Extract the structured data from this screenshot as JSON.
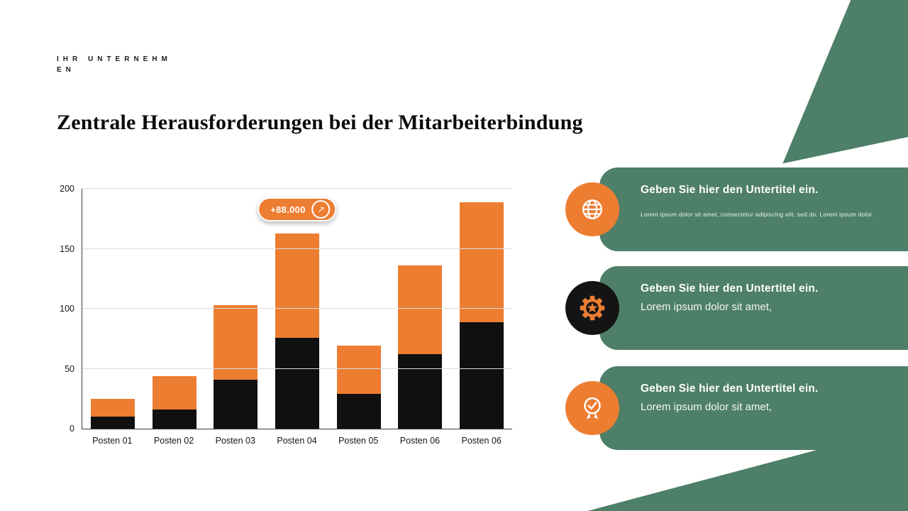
{
  "header": {
    "company_line1": "IHR UNTERNEHM",
    "company_line2": "EN",
    "title": "Zentrale Herausforderungen bei der Mitarbeiterbindung"
  },
  "chart_data": {
    "type": "bar",
    "stacked": true,
    "title": "",
    "xlabel": "",
    "ylabel": "",
    "categories": [
      "Posten 01",
      "Posten 02",
      "Posten 03",
      "Posten 04",
      "Posten 05",
      "Posten 06",
      "Posten 06"
    ],
    "series": [
      {
        "name": "unteres-segment-schwarz",
        "color": "#101010",
        "values": [
          10,
          16,
          41,
          76,
          29,
          62,
          89
        ]
      },
      {
        "name": "oberes-segment-orange",
        "color": "#ED7D31",
        "values": [
          15,
          28,
          62,
          87,
          40,
          74,
          100
        ]
      }
    ],
    "totals": [
      25,
      44,
      103,
      163,
      69,
      136,
      189
    ],
    "ylim": [
      0,
      200
    ],
    "yticks": [
      0,
      50,
      100,
      150,
      200
    ],
    "grid": true,
    "legend": "none",
    "annotation": {
      "label": "+88.000",
      "arrow": "↗",
      "category_index": 3
    }
  },
  "cards": [
    {
      "icon": "globe-icon",
      "icon_bg": "#ED7D31",
      "title": "Geben Sie hier den Untertitel ein.",
      "body": "Lorem ipsum dolor sit amet, consectetur adipiscing elit, sed do. Lorem ipsum dolor."
    },
    {
      "icon": "gear-star-icon",
      "icon_bg": "#141414",
      "title": "Geben Sie hier den Untertitel ein.",
      "body": "Lorem ipsum dolor sit amet,"
    },
    {
      "icon": "medal-check-icon",
      "icon_bg": "#ED7D31",
      "title": "Geben Sie hier den Untertitel ein.",
      "body": "Lorem ipsum dolor sit amet,"
    }
  ],
  "colors": {
    "green": "#4E7F68",
    "orange": "#ED7D31",
    "dark": "#141414",
    "background": "#FFFFFF"
  }
}
